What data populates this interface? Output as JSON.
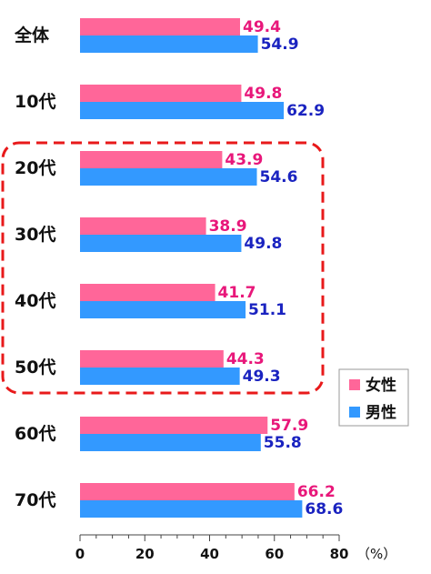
{
  "chart_data": {
    "type": "bar",
    "orientation": "horizontal",
    "categories": [
      "全体",
      "10代",
      "20代",
      "30代",
      "40代",
      "50代",
      "60代",
      "70代"
    ],
    "series": [
      {
        "name": "女性",
        "values": [
          49.4,
          49.8,
          43.9,
          38.9,
          41.7,
          44.3,
          57.9,
          66.2
        ],
        "color": "#ff6699",
        "label_color": "#e8177a"
      },
      {
        "name": "男性",
        "values": [
          54.9,
          62.9,
          54.6,
          49.8,
          51.1,
          49.3,
          55.8,
          68.6
        ],
        "color": "#3399ff",
        "label_color": "#1a23c0"
      }
    ],
    "value_labels": {
      "female": [
        "49.4",
        "49.8",
        "43.9",
        "38.9",
        "41.7",
        "44.3",
        "57.9",
        "66.2"
      ],
      "male": [
        "54.9",
        "62.9",
        "54.6",
        "49.8",
        "51.1",
        "49.3",
        "55.8",
        "68.6"
      ]
    },
    "xlim": [
      0,
      80
    ],
    "xticks": [
      "0",
      "20",
      "40",
      "60",
      "80"
    ],
    "unit": "（%）",
    "legend": {
      "position": "right",
      "items": [
        "女性",
        "男性"
      ]
    },
    "highlight": {
      "categories": [
        "20代",
        "30代",
        "40代",
        "50代"
      ],
      "style": "dashed-rounded-box",
      "color": "#e8191a"
    },
    "grid": false
  }
}
